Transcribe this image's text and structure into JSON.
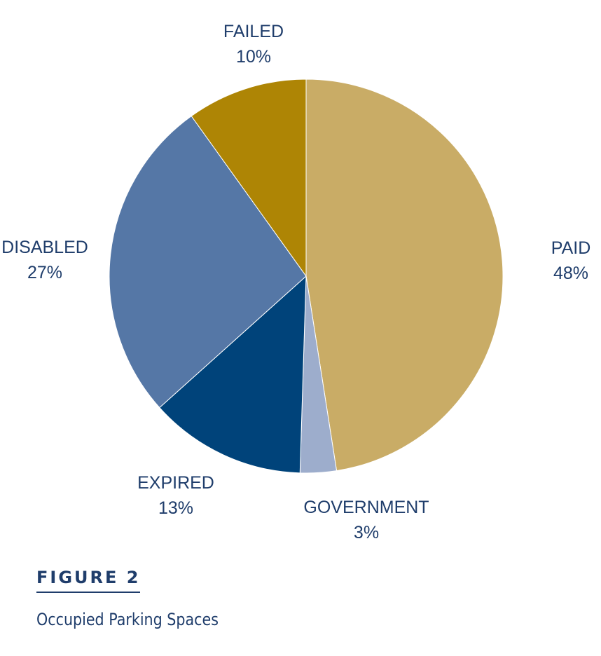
{
  "chart_data": {
    "type": "pie",
    "start": "12 o'clock, clockwise",
    "slices": [
      {
        "label": "PAID",
        "value": 48,
        "value_label": "48%",
        "color": "#c9ac66"
      },
      {
        "label": "GOVERNMENT",
        "value": 3,
        "value_label": "3%",
        "color": "#9dadcc"
      },
      {
        "label": "EXPIRED",
        "value": 13,
        "value_label": "13%",
        "color": "#00437a"
      },
      {
        "label": "DISABLED",
        "value": 27,
        "value_label": "27%",
        "color": "#5577a6"
      },
      {
        "label": "FAILED",
        "value": 10,
        "value_label": "10%",
        "color": "#ae8505"
      }
    ]
  },
  "figure": {
    "number_label": "FIGURE 2",
    "caption": "Occupied Parking Spaces"
  }
}
